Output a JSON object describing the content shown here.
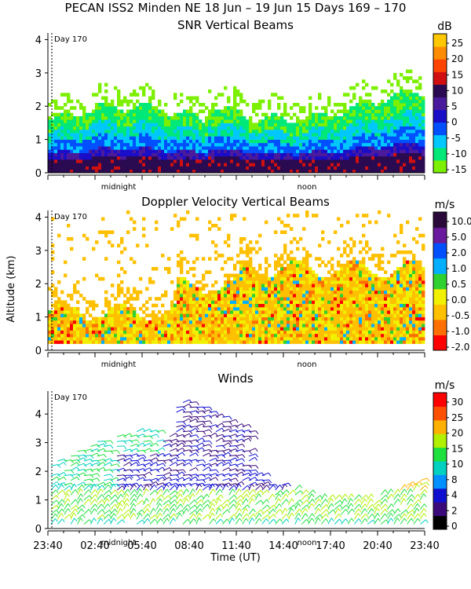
{
  "main_title": "PECAN ISS2 Minden NE  18 Jun – 19 Jun 15 Days 169 – 170",
  "y_axis_label": "Altitude (km)",
  "x_axis_label": "Time (UT)",
  "x_tick_labels": [
    "23:40",
    "02:40",
    "05:40",
    "08:40",
    "11:40",
    "14:40",
    "17:40",
    "20:40",
    "23:40"
  ],
  "day_marker": "Day 170",
  "time_markers": [
    "midnight",
    "noon"
  ],
  "colors": {
    "snr": [
      "#7cf000",
      "#00e878",
      "#00c8ff",
      "#0050ff",
      "#1a0dc8",
      "#4a1a9c",
      "#2a0a50",
      "#d01010",
      "#ff4400",
      "#ff8c00",
      "#ffc800"
    ],
    "doppler": [
      "#ff0000",
      "#ff7000",
      "#ffc000",
      "#f0f000",
      "#30d030",
      "#00b0ff",
      "#0050ff",
      "#6a1a9c",
      "#2a0a3a"
    ],
    "winds": [
      "#000000",
      "#3a0a7a",
      "#1010d0",
      "#0090ff",
      "#00d0c0",
      "#20e040",
      "#b0f000",
      "#ffb000",
      "#ff5000",
      "#ff0000"
    ]
  },
  "chart_data": [
    {
      "type": "heatmap",
      "title": "SNR Vertical Beams",
      "units": "dB",
      "ylim": [
        0,
        4.2
      ],
      "yticks": [
        0,
        1,
        2,
        3,
        4
      ],
      "colorbar_ticks": [
        "25",
        "20",
        "15",
        "10",
        "5",
        "0",
        "-5",
        "-10",
        "-15"
      ],
      "colorbar_range": [
        -15,
        30
      ]
    },
    {
      "type": "heatmap",
      "title": "Doppler Velocity Vertical Beams",
      "units": "m/s",
      "ylim": [
        0,
        4.2
      ],
      "yticks": [
        0,
        1,
        2,
        3,
        4
      ],
      "colorbar_ticks": [
        "10.0",
        "5.0",
        "2.0",
        "1.0",
        "0.5",
        "0.0",
        "-0.5",
        "-1.0",
        "-2.0"
      ],
      "colorbar_range": [
        -2.0,
        10.0
      ]
    },
    {
      "type": "scatter",
      "title": "Winds",
      "units": "m/s",
      "ylim": [
        0,
        4.8
      ],
      "yticks": [
        0,
        1,
        2,
        3,
        4
      ],
      "colorbar_ticks": [
        "30",
        "25",
        "20",
        "15",
        "10",
        "8",
        "4",
        "2",
        "0"
      ],
      "colorbar_range": [
        0,
        33
      ]
    }
  ]
}
